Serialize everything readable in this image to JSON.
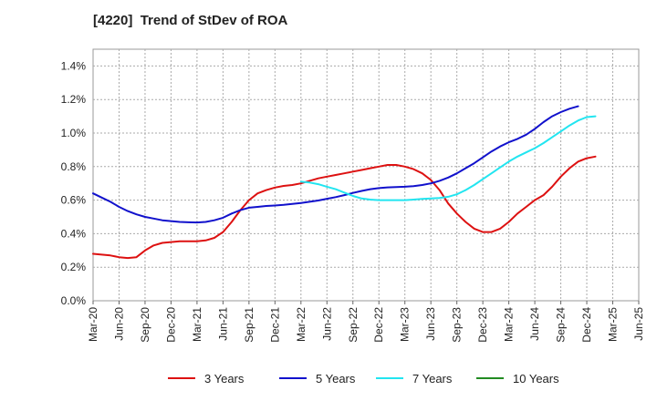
{
  "chart_data": {
    "type": "line",
    "title": "[4220]  Trend of StDev of ROA",
    "xlabel": "",
    "ylabel": "",
    "x_ticks": [
      "Mar-20",
      "Jun-20",
      "Sep-20",
      "Dec-20",
      "Mar-21",
      "Jun-21",
      "Sep-21",
      "Dec-21",
      "Mar-22",
      "Jun-22",
      "Sep-22",
      "Dec-22",
      "Mar-23",
      "Jun-23",
      "Sep-23",
      "Dec-23",
      "Mar-24",
      "Jun-24",
      "Sep-24",
      "Dec-24",
      "Mar-25",
      "Jun-25"
    ],
    "y_ticks": [
      "0.0%",
      "0.2%",
      "0.4%",
      "0.6%",
      "0.8%",
      "1.0%",
      "1.2%",
      "1.4%"
    ],
    "ylim": [
      0,
      1.5
    ],
    "grid": true,
    "legend_position": "bottom",
    "series": [
      {
        "name": "3 Years",
        "color": "#dd1111",
        "points": [
          [
            "Mar-20",
            0.28
          ],
          [
            "Apr-20",
            0.275
          ],
          [
            "May-20",
            0.27
          ],
          [
            "Jun-20",
            0.26
          ],
          [
            "Jul-20",
            0.255
          ],
          [
            "Aug-20",
            0.26
          ],
          [
            "Sep-20",
            0.3
          ],
          [
            "Oct-20",
            0.33
          ],
          [
            "Nov-20",
            0.345
          ],
          [
            "Dec-20",
            0.35
          ],
          [
            "Jan-21",
            0.355
          ],
          [
            "Feb-21",
            0.355
          ],
          [
            "Mar-21",
            0.355
          ],
          [
            "Apr-21",
            0.36
          ],
          [
            "May-21",
            0.375
          ],
          [
            "Jun-21",
            0.41
          ],
          [
            "Jul-21",
            0.47
          ],
          [
            "Aug-21",
            0.54
          ],
          [
            "Sep-21",
            0.6
          ],
          [
            "Oct-21",
            0.64
          ],
          [
            "Nov-21",
            0.66
          ],
          [
            "Dec-21",
            0.675
          ],
          [
            "Jan-22",
            0.685
          ],
          [
            "Feb-22",
            0.69
          ],
          [
            "Mar-22",
            0.7
          ],
          [
            "Apr-22",
            0.715
          ],
          [
            "May-22",
            0.73
          ],
          [
            "Jun-22",
            0.74
          ],
          [
            "Jul-22",
            0.75
          ],
          [
            "Aug-22",
            0.76
          ],
          [
            "Sep-22",
            0.77
          ],
          [
            "Oct-22",
            0.78
          ],
          [
            "Nov-22",
            0.79
          ],
          [
            "Dec-22",
            0.8
          ],
          [
            "Jan-23",
            0.81
          ],
          [
            "Feb-23",
            0.81
          ],
          [
            "Mar-23",
            0.8
          ],
          [
            "Apr-23",
            0.785
          ],
          [
            "May-23",
            0.76
          ],
          [
            "Jun-23",
            0.72
          ],
          [
            "Jul-23",
            0.66
          ],
          [
            "Aug-23",
            0.58
          ],
          [
            "Sep-23",
            0.52
          ],
          [
            "Oct-23",
            0.47
          ],
          [
            "Nov-23",
            0.43
          ],
          [
            "Dec-23",
            0.41
          ],
          [
            "Jan-24",
            0.41
          ],
          [
            "Feb-24",
            0.43
          ],
          [
            "Mar-24",
            0.47
          ],
          [
            "Apr-24",
            0.52
          ],
          [
            "May-24",
            0.56
          ],
          [
            "Jun-24",
            0.6
          ],
          [
            "Jul-24",
            0.63
          ],
          [
            "Aug-24",
            0.68
          ],
          [
            "Sep-24",
            0.74
          ],
          [
            "Oct-24",
            0.79
          ],
          [
            "Nov-24",
            0.83
          ],
          [
            "Dec-24",
            0.85
          ],
          [
            "Jan-25",
            0.86
          ]
        ]
      },
      {
        "name": "5 Years",
        "color": "#1111cc",
        "points": [
          [
            "Mar-20",
            0.64
          ],
          [
            "Apr-20",
            0.615
          ],
          [
            "May-20",
            0.59
          ],
          [
            "Jun-20",
            0.56
          ],
          [
            "Jul-20",
            0.535
          ],
          [
            "Aug-20",
            0.515
          ],
          [
            "Sep-20",
            0.5
          ],
          [
            "Oct-20",
            0.49
          ],
          [
            "Nov-20",
            0.48
          ],
          [
            "Dec-20",
            0.475
          ],
          [
            "Jan-21",
            0.47
          ],
          [
            "Feb-21",
            0.468
          ],
          [
            "Mar-21",
            0.467
          ],
          [
            "Apr-21",
            0.47
          ],
          [
            "May-21",
            0.48
          ],
          [
            "Jun-21",
            0.495
          ],
          [
            "Jul-21",
            0.52
          ],
          [
            "Aug-21",
            0.54
          ],
          [
            "Sep-21",
            0.555
          ],
          [
            "Oct-21",
            0.56
          ],
          [
            "Nov-21",
            0.565
          ],
          [
            "Dec-21",
            0.568
          ],
          [
            "Jan-22",
            0.572
          ],
          [
            "Feb-22",
            0.577
          ],
          [
            "Mar-22",
            0.583
          ],
          [
            "Apr-22",
            0.59
          ],
          [
            "May-22",
            0.598
          ],
          [
            "Jun-22",
            0.608
          ],
          [
            "Jul-22",
            0.618
          ],
          [
            "Aug-22",
            0.63
          ],
          [
            "Sep-22",
            0.643
          ],
          [
            "Oct-22",
            0.655
          ],
          [
            "Nov-22",
            0.665
          ],
          [
            "Dec-22",
            0.672
          ],
          [
            "Jan-23",
            0.676
          ],
          [
            "Feb-23",
            0.678
          ],
          [
            "Mar-23",
            0.68
          ],
          [
            "Apr-23",
            0.683
          ],
          [
            "May-23",
            0.69
          ],
          [
            "Jun-23",
            0.7
          ],
          [
            "Jul-23",
            0.715
          ],
          [
            "Aug-23",
            0.735
          ],
          [
            "Sep-23",
            0.76
          ],
          [
            "Oct-23",
            0.79
          ],
          [
            "Nov-23",
            0.82
          ],
          [
            "Dec-23",
            0.855
          ],
          [
            "Jan-24",
            0.89
          ],
          [
            "Feb-24",
            0.92
          ],
          [
            "Mar-24",
            0.945
          ],
          [
            "Apr-24",
            0.965
          ],
          [
            "May-24",
            0.99
          ],
          [
            "Jun-24",
            1.025
          ],
          [
            "Jul-24",
            1.065
          ],
          [
            "Aug-24",
            1.1
          ],
          [
            "Sep-24",
            1.125
          ],
          [
            "Oct-24",
            1.145
          ],
          [
            "Nov-24",
            1.16
          ]
        ]
      },
      {
        "name": "7 Years",
        "color": "#22e5f0",
        "points": [
          [
            "Mar-22",
            0.71
          ],
          [
            "Apr-22",
            0.705
          ],
          [
            "May-22",
            0.695
          ],
          [
            "Jun-22",
            0.68
          ],
          [
            "Jul-22",
            0.665
          ],
          [
            "Aug-22",
            0.645
          ],
          [
            "Sep-22",
            0.625
          ],
          [
            "Oct-22",
            0.61
          ],
          [
            "Nov-22",
            0.603
          ],
          [
            "Dec-22",
            0.6
          ],
          [
            "Jan-23",
            0.6
          ],
          [
            "Feb-23",
            0.6
          ],
          [
            "Mar-23",
            0.6
          ],
          [
            "Apr-23",
            0.603
          ],
          [
            "May-23",
            0.607
          ],
          [
            "Jun-23",
            0.61
          ],
          [
            "Jul-23",
            0.613
          ],
          [
            "Aug-23",
            0.62
          ],
          [
            "Sep-23",
            0.635
          ],
          [
            "Oct-23",
            0.66
          ],
          [
            "Nov-23",
            0.69
          ],
          [
            "Dec-23",
            0.725
          ],
          [
            "Jan-24",
            0.76
          ],
          [
            "Feb-24",
            0.795
          ],
          [
            "Mar-24",
            0.83
          ],
          [
            "Apr-24",
            0.86
          ],
          [
            "May-24",
            0.885
          ],
          [
            "Jun-24",
            0.91
          ],
          [
            "Jul-24",
            0.94
          ],
          [
            "Aug-24",
            0.975
          ],
          [
            "Sep-24",
            1.01
          ],
          [
            "Oct-24",
            1.045
          ],
          [
            "Nov-24",
            1.075
          ],
          [
            "Dec-24",
            1.095
          ],
          [
            "Jan-25",
            1.1
          ]
        ]
      },
      {
        "name": "10 Years",
        "color": "#228b22",
        "points": []
      }
    ]
  }
}
